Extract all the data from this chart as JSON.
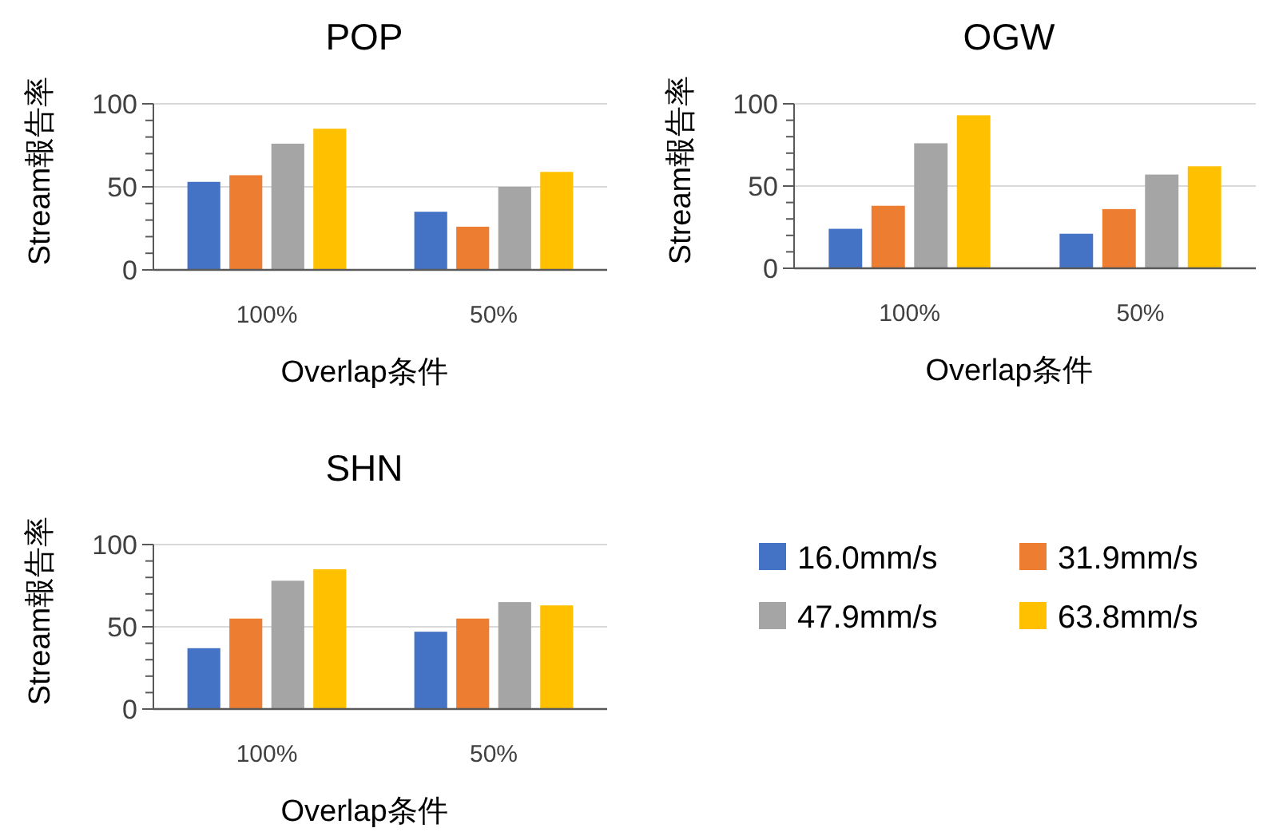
{
  "chart_data": [
    {
      "type": "bar",
      "title": "POP",
      "xlabel": "Overlap条件",
      "ylabel": "Stream報告率",
      "categories": [
        "100%",
        "50%"
      ],
      "ylim": [
        0,
        100
      ],
      "yticks": [
        0,
        {
          "value": 10,
          "label": null
        },
        {
          "value": 20,
          "label": null
        },
        {
          "value": 30,
          "label": null
        },
        {
          "value": 40,
          "label": null
        },
        50,
        {
          "value": 60,
          "label": null
        },
        {
          "value": 70,
          "label": null
        },
        {
          "value": 80,
          "label": null
        },
        {
          "value": 90,
          "label": null
        },
        100
      ],
      "grid": "y",
      "series": [
        {
          "color": "#4472c4",
          "values": [
            53,
            35
          ]
        },
        {
          "color": "#ed7d31",
          "values": [
            57,
            26
          ]
        },
        {
          "color": "#a5a5a5",
          "values": [
            76,
            50
          ]
        },
        {
          "color": "#ffc000",
          "values": [
            85,
            59
          ]
        }
      ]
    },
    {
      "type": "bar",
      "title": "OGW",
      "xlabel": "Overlap条件",
      "ylabel": "Stream報告率",
      "categories": [
        "100%",
        "50%"
      ],
      "ylim": [
        0,
        100
      ],
      "yticks": [
        0,
        {
          "value": 10,
          "label": null
        },
        {
          "value": 20,
          "label": null
        },
        {
          "value": 30,
          "label": null
        },
        {
          "value": 40,
          "label": null
        },
        50,
        {
          "value": 60,
          "label": null
        },
        {
          "value": 70,
          "label": null
        },
        {
          "value": 80,
          "label": null
        },
        {
          "value": 90,
          "label": null
        },
        100
      ],
      "grid": "y",
      "series": [
        {
          "color": "#4472c4",
          "values": [
            24,
            21
          ]
        },
        {
          "color": "#ed7d31",
          "values": [
            38,
            36
          ]
        },
        {
          "color": "#a5a5a5",
          "values": [
            76,
            57
          ]
        },
        {
          "color": "#ffc000",
          "values": [
            93,
            62
          ]
        }
      ]
    },
    {
      "type": "bar",
      "title": "SHN",
      "xlabel": "Overlap条件",
      "ylabel": "Stream報告率",
      "categories": [
        "100%",
        "50%"
      ],
      "ylim": [
        0,
        100
      ],
      "yticks": [
        0,
        {
          "value": 10,
          "label": null
        },
        {
          "value": 20,
          "label": null
        },
        {
          "value": 30,
          "label": null
        },
        {
          "value": 40,
          "label": null
        },
        50,
        {
          "value": 60,
          "label": null
        },
        {
          "value": 70,
          "label": null
        },
        {
          "value": 80,
          "label": null
        },
        {
          "value": 90,
          "label": null
        },
        100
      ],
      "grid": "y",
      "legend": "right",
      "series": [
        {
          "name": "16.0mm/s",
          "color": "#4472c4",
          "values": [
            37,
            47
          ]
        },
        {
          "name": "31.9mm/s",
          "color": "#ed7d31",
          "values": [
            55,
            55
          ]
        },
        {
          "name": "47.9mm/s",
          "color": "#a5a5a5",
          "values": [
            78,
            65
          ]
        },
        {
          "name": "63.8mm/s",
          "color": "#ffc000",
          "values": [
            85,
            63
          ]
        }
      ]
    }
  ]
}
